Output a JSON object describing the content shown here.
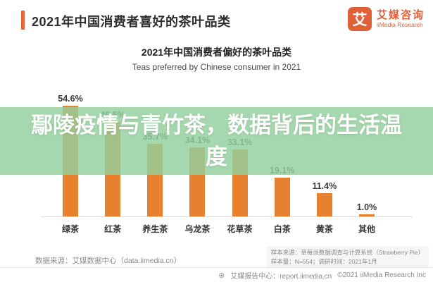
{
  "header": {
    "title": "2021年中国消费者喜好的茶叶品类",
    "logo": {
      "icon_char": "艾",
      "brand_cn": "艾媒咨询",
      "brand_en": "iiMedia Research"
    }
  },
  "chart_data": {
    "type": "bar",
    "title": "2021年中国消费者偏好的茶叶品类",
    "subtitle": "Teas preferred by Chinese consumer in 2021",
    "categories": [
      "绿茶",
      "红茶",
      "养生茶",
      "乌龙茶",
      "花草茶",
      "白茶",
      "黄茶",
      "其他"
    ],
    "values": [
      54.6,
      46.5,
      35.7,
      34.1,
      33.1,
      19.1,
      11.4,
      1.0
    ],
    "value_labels": [
      "54.6%",
      "46.5%",
      "35.7%",
      "34.1%",
      "33.1%",
      "19.1%",
      "11.4%",
      "1.0%"
    ],
    "xlabel": "",
    "ylabel": "",
    "ylim": [
      0,
      60
    ],
    "grid": false,
    "legend": false,
    "bar_color": "#E8812F"
  },
  "watermark": {
    "text": "鄢陵疫情与青竹茶，数据背后的生活温度",
    "band_color": "rgba(147,208,158,0.82)",
    "text_color": "#ffffff"
  },
  "footer": {
    "source": "数据来源：艾媒数据中心（data.iimedia.cn）",
    "sample_source": "样本来源：草莓派数据调查与计算系统（Strawberry Pie）",
    "sample_info": "样本量：N=554；调研时间：2021年1月",
    "report_center": "艾媒报告中心：report.iimedia.cn",
    "copyright": "©2021  iiMedia Research Inc"
  }
}
